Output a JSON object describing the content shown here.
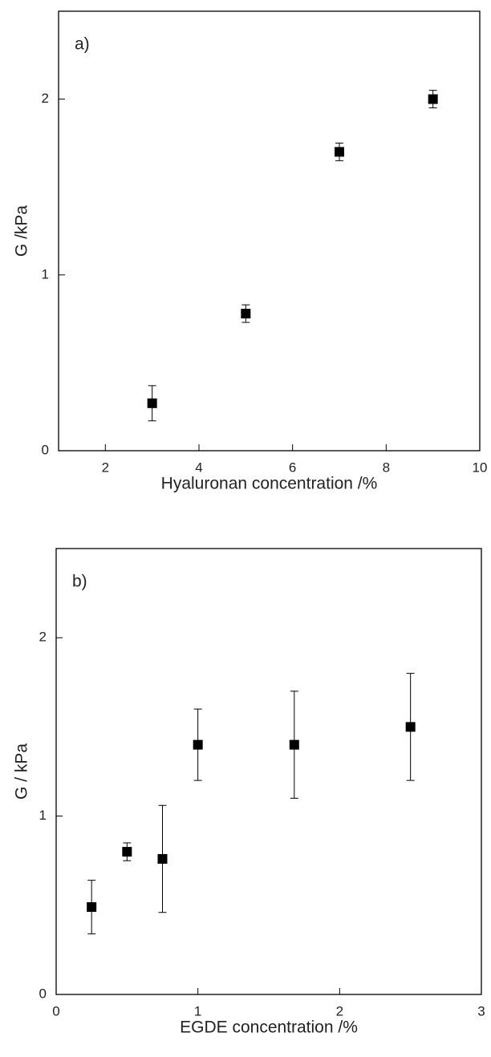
{
  "chart_data": [
    {
      "type": "scatter",
      "annotation": "a)",
      "xlabel": "Hyaluronan concentration /%",
      "ylabel": "G /kPa",
      "x": [
        3,
        5,
        7,
        9
      ],
      "values": [
        0.27,
        0.78,
        1.7,
        2.0
      ],
      "errors": [
        0.1,
        0.05,
        0.05,
        0.05
      ],
      "color": "#000000",
      "xlim": [
        1,
        10
      ],
      "ylim": [
        0,
        2.5
      ],
      "xticks": [
        2,
        4,
        6,
        8,
        10
      ],
      "yticks": [
        0,
        1,
        2
      ]
    },
    {
      "type": "scatter",
      "annotation": "b)",
      "xlabel": "EGDE concentration /%",
      "ylabel": "G / kPa",
      "x": [
        0.25,
        0.5,
        0.75,
        1,
        1.68,
        2.5
      ],
      "values": [
        0.49,
        0.8,
        0.76,
        1.4,
        1.4,
        1.5
      ],
      "errors": [
        0.15,
        0.05,
        0.3,
        0.2,
        0.3,
        0.3
      ],
      "color": "#000000",
      "xlim": [
        0,
        3
      ],
      "ylim": [
        0,
        2.5
      ],
      "xticks": [
        0,
        1,
        2,
        3
      ],
      "yticks": [
        0,
        1,
        2
      ]
    }
  ]
}
